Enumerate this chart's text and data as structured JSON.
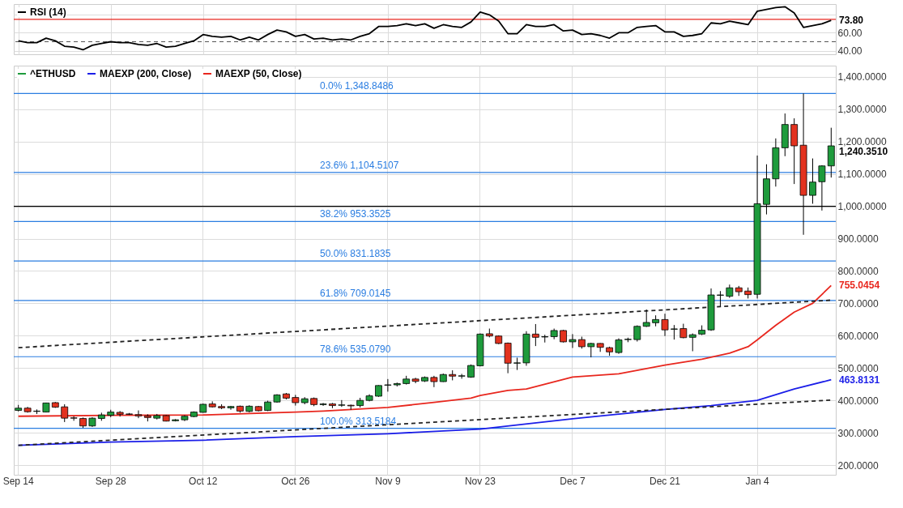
{
  "chart_data": [
    {
      "type": "line",
      "categories": [
        null,
        null,
        null,
        null,
        null,
        null,
        null,
        null,
        null,
        null,
        null,
        null,
        null,
        null,
        null,
        null,
        null,
        null,
        null,
        null,
        null,
        null,
        null,
        null,
        null,
        null,
        null,
        null,
        null,
        null,
        null,
        null,
        null,
        null,
        null,
        null,
        null,
        null,
        null,
        null,
        null,
        null,
        null,
        null,
        null,
        null,
        null,
        null,
        null,
        null,
        null,
        null,
        null,
        null,
        null,
        null,
        null,
        null,
        null,
        null,
        null,
        null,
        null,
        null,
        null,
        null,
        null,
        null,
        null,
        null,
        null,
        null,
        null,
        null,
        null,
        null,
        null,
        null,
        null,
        null,
        null,
        null,
        null,
        null,
        null,
        null,
        null,
        null,
        null
      ],
      "tick_labels": "y",
      "ylim": [
        36,
        92
      ],
      "yticks": [
        {
          "value": 40,
          "label": "40.00"
        },
        {
          "value": 60,
          "label": "60.00"
        },
        {
          "value": 80,
          "label": null
        }
      ],
      "grid": true,
      "legend": "top left",
      "ref_lines": [
        {
          "axis": "y",
          "value": 75,
          "color": "#e8271e"
        },
        {
          "axis": "y",
          "value": 50,
          "color": "#555555",
          "line_style": "dashed"
        }
      ],
      "series": [
        {
          "name": "RSI (14)",
          "color": "#000000",
          "values": [
            51,
            49,
            49,
            54,
            51,
            45,
            44,
            41,
            46,
            48,
            50,
            49,
            49,
            47,
            46,
            48,
            44,
            45,
            48,
            51,
            58,
            56,
            55,
            56,
            52,
            55,
            52,
            58,
            63,
            61,
            56,
            58,
            53,
            54,
            52,
            53,
            52,
            56,
            59,
            67,
            67,
            68,
            70,
            68,
            70,
            65,
            69,
            67,
            66,
            72,
            83,
            80,
            73,
            59,
            59,
            69,
            67,
            67,
            69,
            62,
            63,
            58,
            59,
            57,
            54,
            60,
            60,
            66,
            67,
            68,
            61,
            61,
            56,
            57,
            59,
            71,
            70,
            73,
            71,
            69,
            84,
            86,
            88,
            89,
            82,
            66,
            68,
            70,
            73.8
          ],
          "value_labels": [
            null,
            null,
            null,
            null,
            null,
            null,
            null,
            null,
            null,
            null,
            null,
            null,
            null,
            null,
            null,
            null,
            null,
            null,
            null,
            null,
            null,
            null,
            null,
            null,
            null,
            null,
            null,
            null,
            null,
            null,
            null,
            null,
            null,
            null,
            null,
            null,
            null,
            null,
            null,
            null,
            null,
            null,
            null,
            null,
            null,
            null,
            null,
            null,
            null,
            null,
            null,
            null,
            null,
            null,
            null,
            null,
            null,
            null,
            null,
            null,
            null,
            null,
            null,
            null,
            null,
            null,
            null,
            null,
            null,
            null,
            null,
            null,
            null,
            null,
            null,
            null,
            null,
            null,
            null,
            null,
            null,
            null,
            null,
            null,
            null,
            null,
            null,
            null,
            "73.80"
          ]
        }
      ]
    },
    {
      "type": "candlestick",
      "categories": [
        "Sep 14",
        null,
        null,
        null,
        null,
        null,
        null,
        null,
        null,
        null,
        "Sep 28",
        null,
        null,
        null,
        null,
        null,
        null,
        null,
        null,
        null,
        "Oct 12",
        null,
        null,
        null,
        null,
        null,
        null,
        null,
        null,
        null,
        "Oct 26",
        null,
        null,
        null,
        null,
        null,
        null,
        null,
        null,
        null,
        "Nov 9",
        null,
        null,
        null,
        null,
        null,
        null,
        null,
        null,
        null,
        "Nov 23",
        null,
        null,
        null,
        null,
        null,
        null,
        null,
        null,
        null,
        "Dec 7",
        null,
        null,
        null,
        null,
        null,
        null,
        null,
        null,
        null,
        "Dec 21",
        null,
        null,
        null,
        null,
        null,
        null,
        null,
        null,
        null,
        "Jan 4",
        null,
        null,
        null,
        null,
        null,
        null,
        null,
        null
      ],
      "ylim": [
        170,
        1435
      ],
      "yticks": [
        {
          "value": 200,
          "label": "200.0000"
        },
        {
          "value": 300,
          "label": "300.0000"
        },
        {
          "value": 400,
          "label": "400.0000"
        },
        {
          "value": 500,
          "label": "500.0000"
        },
        {
          "value": 600,
          "label": "600.0000"
        },
        {
          "value": 700,
          "label": "700.0000"
        },
        {
          "value": 800,
          "label": "800.0000"
        },
        {
          "value": 900,
          "label": "900.0000"
        },
        {
          "value": 1000,
          "label": "1,000.0000"
        },
        {
          "value": 1100,
          "label": "1,100.0000"
        },
        {
          "value": 1200,
          "label": "1,200.0000"
        },
        {
          "value": 1300,
          "label": "1,300.0000"
        },
        {
          "value": 1400,
          "label": "1,400.0000"
        }
      ],
      "grid": true,
      "legend": "top left",
      "ref_lines": [
        {
          "axis": "y",
          "value": 1348.8486,
          "label": "0.0% 1,348.8486",
          "color": "#2a7de1"
        },
        {
          "axis": "y",
          "value": 1104.5107,
          "label": "23.6% 1,104.5107",
          "color": "#2a7de1"
        },
        {
          "axis": "y",
          "value": 953.3525,
          "label": "38.2% 953.3525",
          "color": "#2a7de1"
        },
        {
          "axis": "y",
          "value": 831.1835,
          "label": "50.0% 831.1835",
          "color": "#2a7de1"
        },
        {
          "axis": "y",
          "value": 709.0145,
          "label": "61.8% 709.0145",
          "color": "#2a7de1"
        },
        {
          "axis": "y",
          "value": 535.079,
          "label": "78.6% 535.0790",
          "color": "#2a7de1"
        },
        {
          "axis": "y",
          "value": 313.5184,
          "label": "100.0% 313.5184",
          "color": "#2a7de1"
        },
        {
          "axis": "y",
          "value": 1000,
          "color": "#000000"
        }
      ],
      "annotations": [
        "1,240.3510"
      ],
      "series": [
        {
          "type": "candlestick",
          "name": "^ETHUSD",
          "ohlc": [
            [
              369,
              386,
              366,
              376
            ],
            [
              376,
              380,
              362,
              365
            ],
            [
              366,
              372,
              358,
              367
            ],
            [
              364,
              393,
              363,
              392
            ],
            [
              393,
              395,
              377,
              379
            ],
            [
              380,
              388,
              333,
              345
            ],
            [
              346,
              351,
              337,
              345
            ],
            [
              344,
              347,
              315,
              321
            ],
            [
              321,
              348,
              318,
              345
            ],
            [
              344,
              362,
              337,
              355
            ],
            [
              354,
              371,
              348,
              364
            ],
            [
              363,
              367,
              350,
              357
            ],
            [
              358,
              361,
              355,
              357
            ],
            [
              356,
              369,
              345,
              352
            ],
            [
              352,
              357,
              335,
              347
            ],
            [
              345,
              358,
              341,
              353
            ],
            [
              353,
              355,
              335,
              336
            ],
            [
              337,
              342,
              335,
              340
            ],
            [
              340,
              354,
              336,
              351
            ],
            [
              350,
              366,
              348,
              364
            ],
            [
              363,
              390,
              362,
              388
            ],
            [
              389,
              397,
              378,
              380
            ],
            [
              381,
              388,
              373,
              377
            ],
            [
              377,
              383,
              371,
              381
            ],
            [
              382,
              384,
              362,
              367
            ],
            [
              366,
              385,
              363,
              382
            ],
            [
              381,
              383,
              366,
              368
            ],
            [
              369,
              399,
              367,
              395
            ],
            [
              395,
              419,
              393,
              417
            ],
            [
              420,
              423,
              403,
              407
            ],
            [
              409,
              417,
              384,
              393
            ],
            [
              393,
              410,
              388,
              405
            ],
            [
              406,
              409,
              382,
              387
            ],
            [
              387,
              392,
              383,
              389
            ],
            [
              389,
              392,
              376,
              384
            ],
            [
              385,
              401,
              380,
              386
            ],
            [
              385,
              387,
              371,
              383
            ],
            [
              384,
              408,
              378,
              400
            ],
            [
              400,
              419,
              397,
              414
            ],
            [
              413,
              447,
              411,
              446
            ],
            [
              447,
              466,
              427,
              448
            ],
            [
              448,
              455,
              443,
              452
            ],
            [
              452,
              476,
              449,
              466
            ],
            [
              466,
              470,
              453,
              459
            ],
            [
              460,
              474,
              457,
              471
            ],
            [
              471,
              476,
              441,
              458
            ],
            [
              458,
              483,
              457,
              480
            ],
            [
              480,
              493,
              462,
              475
            ],
            [
              475,
              482,
              467,
              476
            ],
            [
              472,
              511,
              470,
              508
            ],
            [
              507,
              607,
              505,
              605
            ],
            [
              606,
              622,
              595,
              599
            ],
            [
              599,
              601,
              574,
              576
            ],
            [
              577,
              579,
              484,
              515
            ],
            [
              515,
              532,
              494,
              516
            ],
            [
              516,
              614,
              507,
              605
            ],
            [
              605,
              636,
              568,
              595
            ],
            [
              596,
              603,
              579,
              597
            ],
            [
              597,
              622,
              589,
              616
            ],
            [
              616,
              618,
              579,
              581
            ],
            [
              581,
              605,
              562,
              588
            ],
            [
              588,
              597,
              560,
              566
            ],
            [
              566,
              578,
              533,
              576
            ],
            [
              576,
              577,
              550,
              564
            ],
            [
              563,
              566,
              538,
              550
            ],
            [
              548,
              592,
              544,
              587
            ],
            [
              588,
              594,
              580,
              589
            ],
            [
              588,
              632,
              582,
              629
            ],
            [
              629,
              681,
              627,
              641
            ],
            [
              640,
              663,
              629,
              650
            ],
            [
              650,
              668,
              599,
              618
            ],
            [
              620,
              633,
              588,
              621
            ],
            [
              622,
              637,
              592,
              594
            ],
            [
              595,
              607,
              552,
              603
            ],
            [
              605,
              632,
              602,
              617
            ],
            [
              618,
              746,
              615,
              726
            ],
            [
              725,
              738,
              690,
              726
            ],
            [
              722,
              758,
              717,
              748
            ],
            [
              748,
              754,
              723,
              736
            ],
            [
              738,
              749,
              715,
              727
            ],
            [
              728,
              1157,
              715,
              1008
            ],
            [
              1006,
              1130,
              975,
              1085
            ],
            [
              1085,
              1210,
              1061,
              1181
            ],
            [
              1181,
              1287,
              1155,
              1253
            ],
            [
              1253,
              1272,
              1069,
              1187
            ],
            [
              1189,
              1348.85,
              912,
              1034
            ],
            [
              1034,
              1148,
              1008,
              1075
            ],
            [
              1076,
              1127,
              987,
              1125
            ],
            [
              1125,
              1243,
              1089,
              1187
            ]
          ],
          "colors": [
            "#1e9b3c",
            "#e3321f",
            "#1e9b3c",
            "#1e9b3c",
            "#e3321f",
            "#e3321f",
            "#e3321f",
            "#e3321f",
            "#1e9b3c",
            "#1e9b3c",
            "#1e9b3c",
            "#e3321f",
            "#e3321f",
            "#e3321f",
            "#e3321f",
            "#1e9b3c",
            "#e3321f",
            "#1e9b3c",
            "#1e9b3c",
            "#1e9b3c",
            "#1e9b3c",
            "#e3321f",
            "#e3321f",
            "#1e9b3c",
            "#e3321f",
            "#1e9b3c",
            "#e3321f",
            "#1e9b3c",
            "#1e9b3c",
            "#e3321f",
            "#e3321f",
            "#1e9b3c",
            "#e3321f",
            "#1e9b3c",
            "#e3321f",
            "#1e9b3c",
            "#e3321f",
            "#1e9b3c",
            "#1e9b3c",
            "#1e9b3c",
            "#1e9b3c",
            "#1e9b3c",
            "#1e9b3c",
            "#e3321f",
            "#1e9b3c",
            "#e3321f",
            "#1e9b3c",
            "#e3321f",
            "#1e9b3c",
            "#1e9b3c",
            "#1e9b3c",
            "#e3321f",
            "#e3321f",
            "#e3321f",
            "#1e9b3c",
            "#1e9b3c",
            "#e3321f",
            "#1e9b3c",
            "#1e9b3c",
            "#e3321f",
            "#1e9b3c",
            "#e3321f",
            "#1e9b3c",
            "#e3321f",
            "#e3321f",
            "#1e9b3c",
            "#1e9b3c",
            "#1e9b3c",
            "#1e9b3c",
            "#1e9b3c",
            "#e3321f",
            "#1e9b3c",
            "#e3321f",
            "#1e9b3c",
            "#1e9b3c",
            "#1e9b3c",
            "#1e9b3c",
            "#1e9b3c",
            "#e3321f",
            "#e3321f",
            "#1e9b3c",
            "#1e9b3c",
            "#1e9b3c",
            "#1e9b3c",
            "#e3321f",
            "#e3321f",
            "#1e9b3c",
            "#1e9b3c",
            "#1e9b3c"
          ]
        },
        {
          "type": "line",
          "name": "MAEXP (200, Close)",
          "color": "#1b1ee8",
          "values": [
            261,
            null,
            null,
            null,
            null,
            null,
            null,
            null,
            null,
            null,
            271,
            null,
            null,
            null,
            null,
            null,
            null,
            null,
            null,
            null,
            277,
            null,
            null,
            null,
            null,
            null,
            null,
            null,
            null,
            null,
            288,
            null,
            null,
            null,
            null,
            null,
            null,
            null,
            null,
            null,
            297,
            null,
            null,
            null,
            null,
            null,
            null,
            null,
            null,
            null,
            311,
            null,
            null,
            null,
            null,
            null,
            null,
            null,
            null,
            null,
            343,
            null,
            null,
            null,
            null,
            null,
            null,
            null,
            null,
            null,
            372,
            null,
            null,
            null,
            null,
            384,
            null,
            null,
            null,
            null,
            400,
            null,
            null,
            null,
            435,
            null,
            null,
            null,
            463.8131
          ],
          "value_labels": [
            null,
            null,
            null,
            null,
            null,
            null,
            null,
            null,
            null,
            null,
            null,
            null,
            null,
            null,
            null,
            null,
            null,
            null,
            null,
            null,
            null,
            null,
            null,
            null,
            null,
            null,
            null,
            null,
            null,
            null,
            null,
            null,
            null,
            null,
            null,
            null,
            null,
            null,
            null,
            null,
            null,
            null,
            null,
            null,
            null,
            null,
            null,
            null,
            null,
            null,
            null,
            null,
            null,
            null,
            null,
            null,
            null,
            null,
            null,
            null,
            null,
            null,
            null,
            null,
            null,
            null,
            null,
            null,
            null,
            null,
            null,
            null,
            null,
            null,
            null,
            null,
            null,
            null,
            null,
            null,
            null,
            null,
            null,
            null,
            null,
            null,
            null,
            null,
            "463.8131"
          ]
        },
        {
          "type": "line",
          "name": "MAEXP (50, Close)",
          "color": "#e8271e",
          "values": [
            351,
            null,
            null,
            null,
            null,
            null,
            null,
            null,
            null,
            null,
            354,
            null,
            null,
            null,
            null,
            null,
            null,
            null,
            null,
            null,
            355,
            null,
            null,
            null,
            null,
            null,
            null,
            null,
            null,
            null,
            364,
            null,
            null,
            367,
            null,
            null,
            null,
            null,
            null,
            null,
            378,
            null,
            null,
            null,
            null,
            394,
            null,
            null,
            null,
            407,
            415,
            null,
            null,
            431,
            null,
            435,
            null,
            null,
            null,
            null,
            472,
            null,
            null,
            null,
            null,
            482,
            null,
            null,
            null,
            null,
            509,
            null,
            null,
            null,
            527,
            null,
            null,
            546,
            null,
            566,
            587,
            null,
            632,
            null,
            673,
            null,
            700,
            null,
            755.0454
          ],
          "value_labels": [
            null,
            null,
            null,
            null,
            null,
            null,
            null,
            null,
            null,
            null,
            null,
            null,
            null,
            null,
            null,
            null,
            null,
            null,
            null,
            null,
            null,
            null,
            null,
            null,
            null,
            null,
            null,
            null,
            null,
            null,
            null,
            null,
            null,
            null,
            null,
            null,
            null,
            null,
            null,
            null,
            null,
            null,
            null,
            null,
            null,
            null,
            null,
            null,
            null,
            null,
            null,
            null,
            null,
            null,
            null,
            null,
            null,
            null,
            null,
            null,
            null,
            null,
            null,
            null,
            null,
            null,
            null,
            null,
            null,
            null,
            null,
            null,
            null,
            null,
            null,
            null,
            null,
            null,
            null,
            null,
            null,
            null,
            null,
            null,
            null,
            null,
            null,
            null,
            "755.0454"
          ]
        },
        {
          "type": "line",
          "color": "#222222",
          "line_style": "dashed",
          "values": [
            563,
            null,
            null,
            null,
            null,
            null,
            null,
            null,
            null,
            null,
            null,
            null,
            null,
            null,
            null,
            null,
            null,
            null,
            null,
            null,
            null,
            null,
            null,
            null,
            null,
            null,
            null,
            null,
            null,
            null,
            null,
            null,
            null,
            null,
            null,
            null,
            null,
            null,
            null,
            null,
            null,
            null,
            null,
            null,
            null,
            null,
            null,
            null,
            null,
            null,
            null,
            null,
            null,
            null,
            null,
            null,
            null,
            null,
            null,
            null,
            null,
            null,
            null,
            null,
            null,
            null,
            null,
            null,
            null,
            null,
            null,
            null,
            null,
            null,
            null,
            null,
            null,
            null,
            null,
            null,
            null,
            null,
            null,
            null,
            null,
            null,
            null,
            null,
            710
          ]
        },
        {
          "type": "line",
          "color": "#222222",
          "line_style": "dashed",
          "values": [
            261,
            null,
            null,
            null,
            null,
            null,
            null,
            null,
            null,
            null,
            null,
            null,
            null,
            null,
            null,
            null,
            null,
            null,
            null,
            null,
            null,
            null,
            null,
            null,
            null,
            null,
            null,
            null,
            null,
            null,
            null,
            null,
            null,
            null,
            null,
            null,
            null,
            null,
            null,
            null,
            null,
            null,
            null,
            null,
            null,
            null,
            null,
            null,
            null,
            null,
            null,
            null,
            null,
            null,
            null,
            null,
            null,
            null,
            null,
            null,
            null,
            null,
            null,
            null,
            null,
            null,
            null,
            null,
            null,
            null,
            null,
            null,
            null,
            null,
            null,
            null,
            null,
            null,
            null,
            null,
            null,
            null,
            null,
            null,
            null,
            null,
            null,
            null,
            401
          ]
        }
      ]
    }
  ]
}
